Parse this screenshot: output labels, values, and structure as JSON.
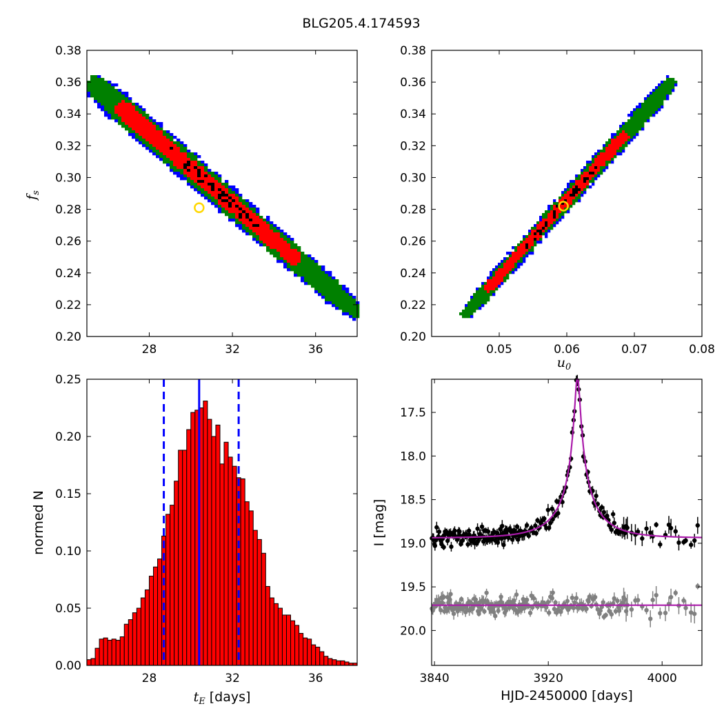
{
  "title": "BLG205.4.174593",
  "chart_data": [
    {
      "type": "heatmap",
      "panel": "tE vs fs",
      "ylabel_main": "f",
      "ylabel_sub": "s",
      "xlim": [
        25,
        38
      ],
      "ylim": [
        0.2,
        0.38
      ],
      "xticks": [
        28,
        32,
        36
      ],
      "xtick_labels": [
        "28",
        "32",
        "36"
      ],
      "yticks": [
        0.2,
        0.22,
        0.24,
        0.26,
        0.28,
        0.3,
        0.32,
        0.34,
        0.36,
        0.38
      ],
      "ytick_labels": [
        "0.20",
        "0.22",
        "0.24",
        "0.26",
        "0.28",
        "0.30",
        "0.32",
        "0.34",
        "0.36",
        "0.38"
      ],
      "ridge": [
        [
          25.2,
          0.36
        ],
        [
          38.0,
          0.215
        ]
      ],
      "best_fit": {
        "x": 30.4,
        "y": 0.281
      },
      "level_colors": [
        "#0000ff",
        "#008000",
        "#ff0000",
        "#000000"
      ],
      "marker_color": "#ffd700"
    },
    {
      "type": "heatmap",
      "panel": "u0 vs fs",
      "xlabel_main": "u",
      "xlabel_sub": "0",
      "xlim": [
        0.04,
        0.08
      ],
      "ylim": [
        0.2,
        0.38
      ],
      "xticks": [
        0.05,
        0.06,
        0.07,
        0.08
      ],
      "xtick_labels": [
        "0.05",
        "0.06",
        "0.07",
        "0.08"
      ],
      "yticks": [
        0.2,
        0.22,
        0.24,
        0.26,
        0.28,
        0.3,
        0.32,
        0.34,
        0.36,
        0.38
      ],
      "ytick_labels": [
        "0.20",
        "0.22",
        "0.24",
        "0.26",
        "0.28",
        "0.30",
        "0.32",
        "0.34",
        "0.36",
        "0.38"
      ],
      "ridge": [
        [
          0.045,
          0.214
        ],
        [
          0.0755,
          0.36
        ]
      ],
      "best_fit": {
        "x": 0.0595,
        "y": 0.282
      },
      "level_colors": [
        "#0000ff",
        "#008000",
        "#ff0000",
        "#000000"
      ],
      "marker_color": "#ffd700"
    },
    {
      "type": "bar",
      "panel": "tE histogram",
      "xlabel_main": "t",
      "xlabel_sub": "E",
      "xlabel_rest": " [days]",
      "ylabel": "normed N",
      "xlim": [
        25,
        38
      ],
      "ylim": [
        0,
        0.25
      ],
      "xticks": [
        28,
        32,
        36
      ],
      "xtick_labels": [
        "28",
        "32",
        "36"
      ],
      "yticks": [
        0,
        0.05,
        0.1,
        0.15,
        0.2,
        0.25
      ],
      "ytick_labels": [
        "0.00",
        "0.05",
        "0.10",
        "0.15",
        "0.20",
        "0.25"
      ],
      "bin_start": 25.0,
      "bin_width": 0.2,
      "values": [
        0.005,
        0.006,
        0.015,
        0.023,
        0.024,
        0.022,
        0.023,
        0.022,
        0.025,
        0.036,
        0.04,
        0.046,
        0.05,
        0.059,
        0.066,
        0.078,
        0.086,
        0.093,
        0.113,
        0.132,
        0.14,
        0.161,
        0.188,
        0.188,
        0.206,
        0.221,
        0.223,
        0.225,
        0.231,
        0.215,
        0.2,
        0.21,
        0.176,
        0.195,
        0.182,
        0.174,
        0.164,
        0.163,
        0.143,
        0.135,
        0.118,
        0.11,
        0.098,
        0.069,
        0.059,
        0.054,
        0.05,
        0.044,
        0.044,
        0.039,
        0.035,
        0.028,
        0.024,
        0.023,
        0.018,
        0.016,
        0.012,
        0.008,
        0.006,
        0.005,
        0.004,
        0.004,
        0.003,
        0.002,
        0.002
      ],
      "bar_color": "#ff0000",
      "median": 30.4,
      "interval": [
        28.7,
        32.3
      ],
      "line_color": "#0000ff"
    },
    {
      "type": "scatter",
      "panel": "light curve",
      "xlabel": "HJD-2450000 [days]",
      "ylabel": "I [mag]",
      "xlim": [
        3838,
        4028
      ],
      "ylim": [
        20.4,
        17.12
      ],
      "xticks": [
        3840,
        3920,
        4000
      ],
      "xtick_labels": [
        "3840",
        "3920",
        "4000"
      ],
      "yticks": [
        17.5,
        18.0,
        18.5,
        19.0,
        19.5,
        20.0
      ],
      "ytick_labels": [
        "17.5",
        "18.0",
        "18.5",
        "19.0",
        "19.5",
        "20.0"
      ],
      "model": {
        "t0": 3940.5,
        "tE": 30.4,
        "u0": 0.0595,
        "base_mag": 18.94,
        "residual_mag": 19.71
      },
      "series": [
        {
          "color": "#000000"
        },
        {
          "color": "#808080"
        }
      ],
      "model_color": "#aa1aaa"
    }
  ]
}
